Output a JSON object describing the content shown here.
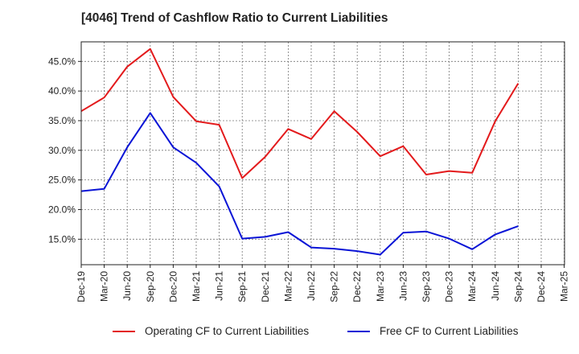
{
  "chart_data": {
    "type": "line",
    "title": "[4046]  Trend of Cashflow Ratio to Current Liabilities",
    "xlabel": "",
    "ylabel": "",
    "x_ticks": [
      "Dec-19",
      "Mar-20",
      "Jun-20",
      "Sep-20",
      "Dec-20",
      "Mar-21",
      "Jun-21",
      "Sep-21",
      "Dec-21",
      "Mar-22",
      "Jun-22",
      "Sep-22",
      "Dec-22",
      "Mar-23",
      "Jun-23",
      "Sep-23",
      "Dec-23",
      "Mar-24",
      "Jun-24",
      "Sep-24",
      "Dec-24",
      "Mar-25"
    ],
    "y_ticks": [
      15,
      20,
      25,
      30,
      35,
      40,
      45
    ],
    "y_tick_labels": [
      "15.0%",
      "20.0%",
      "25.0%",
      "30.0%",
      "35.0%",
      "40.0%",
      "45.0%"
    ],
    "ylim": [
      10.7,
      48.3
    ],
    "grid": true,
    "legend_position": "bottom",
    "series": [
      {
        "name": "Operating CF to Current Liabilities",
        "color": "#e31a1c",
        "x": [
          "Dec-19",
          "Mar-20",
          "Jun-20",
          "Sep-20",
          "Dec-20",
          "Mar-21",
          "Jun-21",
          "Sep-21",
          "Dec-21",
          "Mar-22",
          "Jun-22",
          "Sep-22",
          "Dec-22",
          "Mar-23",
          "Jun-23",
          "Sep-23",
          "Dec-23",
          "Mar-24",
          "Jun-24",
          "Sep-24"
        ],
        "values": [
          36.6,
          38.9,
          44.1,
          47.1,
          39.0,
          34.9,
          34.3,
          25.3,
          28.9,
          33.6,
          31.9,
          36.6,
          33.1,
          29.0,
          30.7,
          25.9,
          26.5,
          26.2,
          34.9,
          41.3
        ]
      },
      {
        "name": "Free CF to Current Liabilities",
        "color": "#0a14d6",
        "x": [
          "Dec-19",
          "Mar-20",
          "Jun-20",
          "Sep-20",
          "Dec-20",
          "Mar-21",
          "Jun-21",
          "Sep-21",
          "Dec-21",
          "Mar-22",
          "Jun-22",
          "Sep-22",
          "Dec-22",
          "Mar-23",
          "Jun-23",
          "Sep-23",
          "Dec-23",
          "Mar-24",
          "Jun-24",
          "Sep-24"
        ],
        "values": [
          23.1,
          23.5,
          30.5,
          36.3,
          30.5,
          27.9,
          23.9,
          15.1,
          15.4,
          16.2,
          13.6,
          13.4,
          13.0,
          12.4,
          16.1,
          16.3,
          15.1,
          13.3,
          15.8,
          17.2
        ]
      }
    ]
  }
}
